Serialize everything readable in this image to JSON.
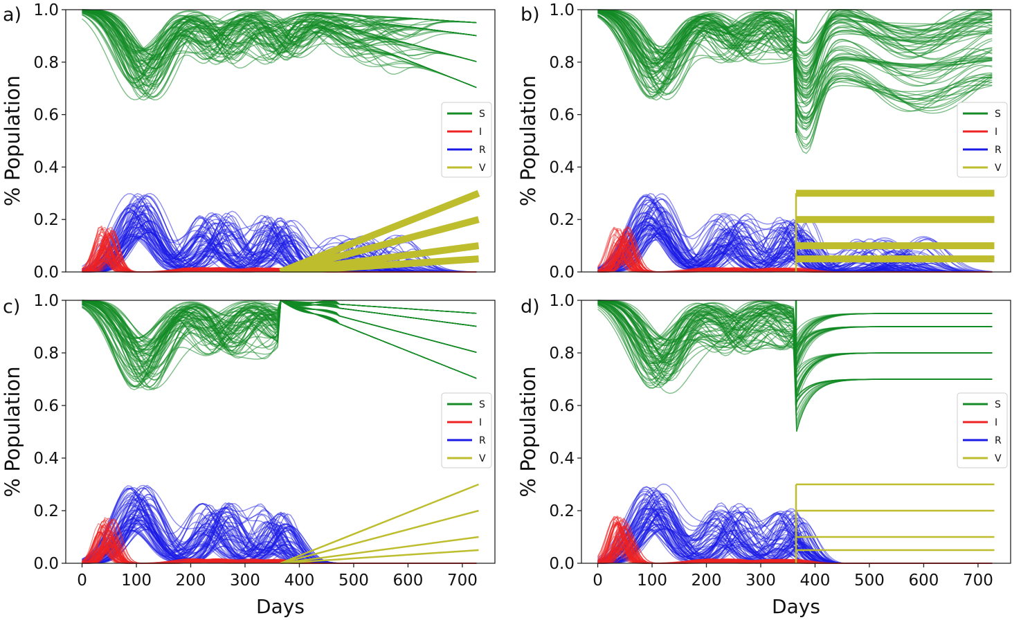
{
  "figure": {
    "panel_labels": [
      "a)",
      "b)",
      "c)",
      "d)"
    ]
  },
  "chart_data": [
    {
      "panel": "a)",
      "type": "line",
      "xlabel": "",
      "ylabel": "% Population",
      "xlim": [
        -30,
        760
      ],
      "ylim": [
        0.0,
        1.0
      ],
      "xticks": [],
      "yticks": [
        0.0,
        0.2,
        0.4,
        0.6,
        0.8,
        1.0
      ],
      "ytick_labels": [
        "0.0",
        "0.2",
        "0.4",
        "0.6",
        "0.8",
        "1.0"
      ],
      "vaccination_start_day": 365,
      "vaccination_style": "gradual",
      "vaccination_band": "thick",
      "vaccination_targets": [
        0.1,
        0.2,
        0.3,
        0.05
      ],
      "legend": [
        {
          "label": "S",
          "color": "#138a24"
        },
        {
          "label": "I",
          "color": "#ee2222"
        },
        {
          "label": "R",
          "color": "#1a1ae6"
        },
        {
          "label": "V",
          "color": "#bdbd2e"
        }
      ]
    },
    {
      "panel": "b)",
      "type": "line",
      "xlabel": "",
      "ylabel": "% Population",
      "xlim": [
        -30,
        760
      ],
      "ylim": [
        0.0,
        1.0
      ],
      "xticks": [],
      "yticks": [
        0.0,
        0.2,
        0.4,
        0.6,
        0.8,
        1.0
      ],
      "ytick_labels": [
        "0.0",
        "0.2",
        "0.4",
        "0.6",
        "0.8",
        "1.0"
      ],
      "vaccination_start_day": 365,
      "vaccination_style": "instant",
      "vaccination_band": "thick",
      "vaccination_targets": [
        0.1,
        0.2,
        0.3,
        0.05
      ],
      "legend": [
        {
          "label": "S",
          "color": "#138a24"
        },
        {
          "label": "I",
          "color": "#ee2222"
        },
        {
          "label": "R",
          "color": "#1a1ae6"
        },
        {
          "label": "V",
          "color": "#bdbd2e"
        }
      ]
    },
    {
      "panel": "c)",
      "type": "line",
      "xlabel": "Days",
      "ylabel": "% Population",
      "xlim": [
        -30,
        760
      ],
      "ylim": [
        0.0,
        1.0
      ],
      "xticks": [
        0,
        100,
        200,
        300,
        400,
        500,
        600,
        700
      ],
      "xtick_labels": [
        "0",
        "100",
        "200",
        "300",
        "400",
        "500",
        "600",
        "700"
      ],
      "yticks": [
        0.0,
        0.2,
        0.4,
        0.6,
        0.8,
        1.0
      ],
      "ytick_labels": [
        "0.0",
        "0.2",
        "0.4",
        "0.6",
        "0.8",
        "1.0"
      ],
      "vaccination_start_day": 365,
      "vaccination_style": "gradual",
      "vaccination_band": "thin",
      "vaccination_targets": [
        0.1,
        0.2,
        0.3,
        0.05
      ],
      "legend": [
        {
          "label": "S",
          "color": "#138a24"
        },
        {
          "label": "I",
          "color": "#ee2222"
        },
        {
          "label": "R",
          "color": "#1a1ae6"
        },
        {
          "label": "V",
          "color": "#bdbd2e"
        }
      ]
    },
    {
      "panel": "d)",
      "type": "line",
      "xlabel": "Days",
      "ylabel": "% Population",
      "xlim": [
        -30,
        760
      ],
      "ylim": [
        0.0,
        1.0
      ],
      "xticks": [
        0,
        100,
        200,
        300,
        400,
        500,
        600,
        700
      ],
      "xtick_labels": [
        "0",
        "100",
        "200",
        "300",
        "400",
        "500",
        "600",
        "700"
      ],
      "yticks": [
        0.0,
        0.2,
        0.4,
        0.6,
        0.8,
        1.0
      ],
      "ytick_labels": [
        "0.0",
        "0.2",
        "0.4",
        "0.6",
        "0.8",
        "1.0"
      ],
      "vaccination_start_day": 365,
      "vaccination_style": "instant",
      "vaccination_band": "thin",
      "vaccination_targets": [
        0.1,
        0.2,
        0.3,
        0.05
      ],
      "legend": [
        {
          "label": "S",
          "color": "#138a24"
        },
        {
          "label": "I",
          "color": "#ee2222"
        },
        {
          "label": "R",
          "color": "#1a1ae6"
        },
        {
          "label": "V",
          "color": "#bdbd2e"
        }
      ]
    }
  ]
}
